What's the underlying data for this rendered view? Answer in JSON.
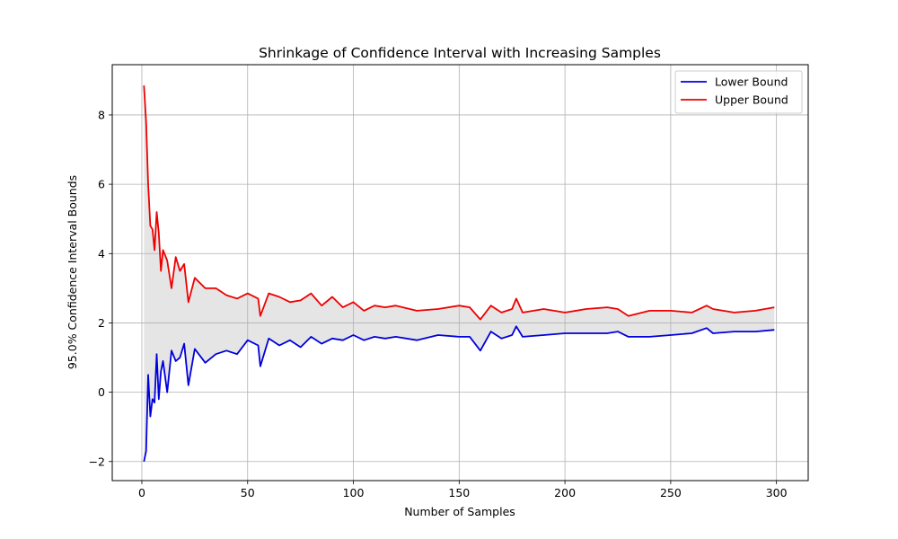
{
  "chart_data": {
    "type": "line",
    "title": "Shrinkage of Confidence Interval with Increasing Samples",
    "xlabel": "Number of Samples",
    "ylabel": "95.0% Confidence Interval Bounds",
    "xlim": [
      -14,
      315
    ],
    "ylim": [
      -2.55,
      9.45
    ],
    "xticks": [
      0,
      50,
      100,
      150,
      200,
      250,
      300
    ],
    "yticks": [
      -2,
      0,
      2,
      4,
      6,
      8
    ],
    "xtick_labels": [
      "0",
      "50",
      "100",
      "150",
      "200",
      "250",
      "300"
    ],
    "ytick_labels": [
      "−2",
      "0",
      "2",
      "4",
      "6",
      "8"
    ],
    "grid": true,
    "legend_position": "top-right",
    "fill_between": {
      "color": "#e5e5e5"
    },
    "x": [
      1,
      2,
      3,
      4,
      5,
      6,
      7,
      8,
      9,
      10,
      12,
      14,
      16,
      18,
      20,
      22,
      25,
      30,
      35,
      40,
      45,
      50,
      55,
      56,
      60,
      65,
      70,
      75,
      80,
      85,
      90,
      95,
      100,
      105,
      110,
      115,
      120,
      130,
      140,
      150,
      155,
      160,
      165,
      170,
      175,
      177,
      180,
      190,
      200,
      210,
      220,
      225,
      230,
      240,
      250,
      260,
      267,
      270,
      280,
      290,
      299
    ],
    "series": [
      {
        "name": "Lower Bound",
        "color": "#0000dd",
        "values": [
          -2.0,
          -1.7,
          0.5,
          -0.7,
          -0.2,
          -0.3,
          1.1,
          -0.2,
          0.6,
          0.9,
          0.0,
          1.2,
          0.9,
          1.0,
          1.4,
          0.2,
          1.25,
          0.85,
          1.1,
          1.2,
          1.1,
          1.5,
          1.35,
          0.75,
          1.55,
          1.35,
          1.5,
          1.3,
          1.6,
          1.4,
          1.55,
          1.5,
          1.65,
          1.5,
          1.6,
          1.55,
          1.6,
          1.5,
          1.65,
          1.6,
          1.6,
          1.2,
          1.75,
          1.55,
          1.65,
          1.9,
          1.6,
          1.65,
          1.7,
          1.7,
          1.7,
          1.75,
          1.6,
          1.6,
          1.65,
          1.7,
          1.85,
          1.7,
          1.75,
          1.75,
          1.8
        ]
      },
      {
        "name": "Upper Bound",
        "color": "#ee0000",
        "values": [
          8.85,
          7.8,
          6.0,
          4.8,
          4.7,
          4.1,
          5.2,
          4.6,
          3.5,
          4.1,
          3.8,
          3.0,
          3.9,
          3.5,
          3.7,
          2.6,
          3.3,
          3.0,
          3.0,
          2.8,
          2.7,
          2.85,
          2.7,
          2.2,
          2.85,
          2.75,
          2.6,
          2.65,
          2.85,
          2.5,
          2.75,
          2.45,
          2.6,
          2.35,
          2.5,
          2.45,
          2.5,
          2.35,
          2.4,
          2.5,
          2.45,
          2.1,
          2.5,
          2.3,
          2.4,
          2.7,
          2.3,
          2.4,
          2.3,
          2.4,
          2.45,
          2.4,
          2.2,
          2.35,
          2.35,
          2.3,
          2.5,
          2.4,
          2.3,
          2.35,
          2.45
        ]
      }
    ]
  }
}
